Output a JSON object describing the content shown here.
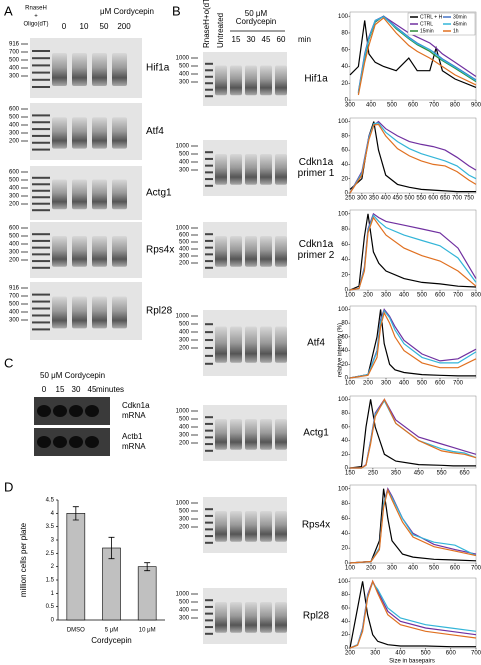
{
  "panel_labels": [
    "A",
    "B",
    "C",
    "D"
  ],
  "panel_a": {
    "header_control": [
      "RnaseH",
      "+",
      "Oligo(dT)"
    ],
    "header_title": "μM Cordycepin",
    "lanes": [
      "0",
      "10",
      "50",
      "200"
    ],
    "gels": [
      {
        "gene": "Hif1a",
        "ladder": [
          "916",
          "700",
          "500",
          "400",
          "300"
        ]
      },
      {
        "gene": "Atf4",
        "ladder": [
          "600",
          "500",
          "400",
          "300",
          "200"
        ]
      },
      {
        "gene": "Actg1",
        "ladder": [
          "600",
          "500",
          "400",
          "300",
          "200"
        ]
      },
      {
        "gene": "Rps4x",
        "ladder": [
          "600",
          "500",
          "400",
          "300",
          "200"
        ]
      },
      {
        "gene": "Rpl28",
        "ladder": [
          "916",
          "700",
          "500",
          "400",
          "300"
        ]
      }
    ]
  },
  "panel_b": {
    "header_control": "RnaseH+o(dT)",
    "header_untreated": "Untreated",
    "header_title": [
      "50 μM",
      "Cordycepin"
    ],
    "lanes": [
      "15",
      "30",
      "45",
      "60"
    ],
    "unit": "min",
    "gels": [
      {
        "gene": [
          "Hif1a"
        ],
        "ladder": [
          "1000",
          "500",
          "400",
          "300"
        ]
      },
      {
        "gene": [
          "Cdkn1a",
          "primer 1"
        ],
        "ladder": [
          "1000",
          "500",
          "400",
          "300"
        ]
      },
      {
        "gene": [
          "Cdkn1a",
          "primer 2"
        ],
        "ladder": [
          "1000",
          "600",
          "500",
          "400",
          "300",
          "200"
        ]
      },
      {
        "gene": [
          "Atf4"
        ],
        "ladder": [
          "1000",
          "500",
          "400",
          "300",
          "200"
        ]
      },
      {
        "gene": [
          "Actg1"
        ],
        "ladder": [
          "1000",
          "500",
          "400",
          "300",
          "200"
        ]
      },
      {
        "gene": [
          "Rps4x"
        ],
        "ladder": [
          "1000",
          "500",
          "300",
          "200"
        ]
      },
      {
        "gene": [
          "Rpl28"
        ],
        "ladder": [
          "1000",
          "500",
          "400",
          "300"
        ]
      }
    ],
    "y_axis_label": "relative intensity (%)",
    "x_axis_label": "Size in basepairs"
  },
  "panel_c": {
    "title": "50 μM Cordycepin",
    "lanes": [
      "0",
      "15",
      "30",
      "45"
    ],
    "lane_unit": "minutes",
    "blots": [
      [
        "Cdkn1a",
        "mRNA"
      ],
      [
        "Actb1",
        "mRNA"
      ]
    ]
  },
  "chart_data": [
    {
      "type": "line",
      "xlim": [
        300,
        900
      ],
      "xticks": [
        300,
        400,
        500,
        600,
        700,
        800,
        900
      ],
      "ylim": [
        0,
        105
      ],
      "yticks": [
        0,
        20,
        40,
        60,
        80,
        100
      ],
      "x": [
        300,
        340,
        370,
        390,
        420,
        460,
        520,
        580,
        620,
        680,
        710,
        740,
        800,
        900
      ],
      "series": [
        {
          "name": "CTRL + H",
          "color": "#000000",
          "values": [
            30,
            40,
            95,
            55,
            45,
            40,
            35,
            50,
            35,
            35,
            62,
            35,
            25,
            15
          ]
        },
        {
          "name": "CTRL",
          "color": "#7030a0",
          "values": [
            null,
            10,
            55,
            75,
            95,
            100,
            90,
            80,
            75,
            68,
            62,
            55,
            45,
            28
          ]
        },
        {
          "name": "15min",
          "color": "#2e8b3a",
          "values": [
            null,
            8,
            50,
            72,
            93,
            100,
            85,
            73,
            66,
            58,
            52,
            47,
            38,
            22
          ]
        },
        {
          "name": "30min",
          "color": "#4472c4",
          "values": [
            null,
            8,
            52,
            74,
            94,
            100,
            87,
            75,
            68,
            60,
            55,
            49,
            40,
            24
          ]
        },
        {
          "name": "45min",
          "color": "#33b5d8",
          "values": [
            null,
            9,
            53,
            73,
            95,
            99,
            86,
            74,
            67,
            60,
            54,
            48,
            39,
            23
          ]
        },
        {
          "name": "1h",
          "color": "#e07020",
          "values": [
            null,
            6,
            45,
            65,
            90,
            98,
            80,
            65,
            58,
            50,
            45,
            40,
            30,
            18
          ]
        }
      ]
    },
    {
      "type": "line",
      "xlim": [
        250,
        780
      ],
      "xticks": [
        250,
        300,
        350,
        400,
        450,
        500,
        550,
        600,
        650,
        700,
        750
      ],
      "ylim": [
        0,
        105
      ],
      "yticks": [
        0,
        20,
        40,
        60,
        80,
        100
      ],
      "x": [
        250,
        300,
        330,
        350,
        370,
        400,
        450,
        500,
        550,
        600,
        650,
        700,
        750,
        780
      ],
      "series": [
        {
          "color": "#000000",
          "values": [
            5,
            20,
            80,
            100,
            60,
            25,
            12,
            8,
            5,
            4,
            3,
            2,
            2,
            2
          ]
        },
        {
          "color": "#7030a0",
          "values": [
            0,
            30,
            80,
            95,
            100,
            90,
            80,
            72,
            68,
            65,
            60,
            50,
            38,
            32
          ]
        },
        {
          "color": "#33b5d8",
          "values": [
            0,
            28,
            78,
            97,
            98,
            85,
            72,
            62,
            55,
            50,
            45,
            38,
            25,
            20
          ]
        },
        {
          "color": "#e07020",
          "values": [
            0,
            25,
            75,
            95,
            96,
            80,
            62,
            52,
            45,
            40,
            38,
            30,
            18,
            12
          ]
        }
      ]
    },
    {
      "type": "line",
      "xlim": [
        100,
        800
      ],
      "xticks": [
        100,
        200,
        300,
        400,
        500,
        600,
        700,
        800
      ],
      "ylim": [
        0,
        105
      ],
      "yticks": [
        0,
        20,
        40,
        60,
        80,
        100
      ],
      "x": [
        100,
        150,
        180,
        200,
        230,
        260,
        300,
        400,
        500,
        600,
        700,
        800
      ],
      "series": [
        {
          "color": "#000000",
          "values": [
            0,
            5,
            70,
            100,
            50,
            35,
            25,
            15,
            10,
            8,
            5,
            4
          ]
        },
        {
          "color": "#7030a0",
          "values": [
            0,
            2,
            30,
            80,
            100,
            95,
            90,
            85,
            80,
            75,
            55,
            15
          ]
        },
        {
          "color": "#33b5d8",
          "values": [
            0,
            2,
            28,
            78,
            98,
            90,
            82,
            72,
            65,
            58,
            42,
            10
          ]
        },
        {
          "color": "#e07020",
          "values": [
            0,
            2,
            25,
            75,
            95,
            85,
            72,
            55,
            45,
            38,
            25,
            5
          ]
        }
      ]
    },
    {
      "type": "line",
      "xlim": [
        100,
        800
      ],
      "xticks": [
        100,
        200,
        300,
        400,
        500,
        600,
        700
      ],
      "ylim": [
        0,
        105
      ],
      "yticks": [
        0,
        20,
        40,
        60,
        80,
        100
      ],
      "x": [
        100,
        200,
        250,
        270,
        290,
        320,
        350,
        400,
        500,
        600,
        700,
        800
      ],
      "series": [
        {
          "color": "#000000",
          "values": [
            0,
            5,
            60,
            100,
            50,
            20,
            12,
            8,
            5,
            4,
            3,
            3
          ]
        },
        {
          "color": "#7030a0",
          "values": [
            0,
            5,
            40,
            85,
            100,
            90,
            75,
            55,
            35,
            25,
            28,
            42
          ]
        },
        {
          "color": "#33b5d8",
          "values": [
            0,
            5,
            38,
            82,
            98,
            88,
            70,
            50,
            30,
            22,
            22,
            38
          ]
        },
        {
          "color": "#e07020",
          "values": [
            0,
            4,
            30,
            75,
            95,
            80,
            60,
            40,
            22,
            15,
            15,
            28
          ]
        }
      ]
    },
    {
      "type": "line",
      "xlim": [
        150,
        700
      ],
      "xticks": [
        150,
        250,
        350,
        450,
        550,
        650
      ],
      "ylim": [
        0,
        105
      ],
      "yticks": [
        0,
        20,
        40,
        60,
        80,
        100
      ],
      "x": [
        150,
        200,
        220,
        240,
        260,
        300,
        350,
        450,
        550,
        600,
        650,
        700
      ],
      "series": [
        {
          "color": "#000000",
          "values": [
            0,
            2,
            60,
            100,
            60,
            20,
            10,
            5,
            4,
            3,
            3,
            3
          ]
        },
        {
          "color": "#7030a0",
          "values": [
            0,
            0,
            5,
            40,
            80,
            100,
            70,
            45,
            35,
            30,
            25,
            20
          ]
        },
        {
          "color": "#33b5d8",
          "values": [
            0,
            0,
            4,
            38,
            78,
            98,
            65,
            40,
            28,
            24,
            22,
            15
          ]
        },
        {
          "color": "#e07020",
          "values": [
            0,
            0,
            4,
            35,
            75,
            100,
            65,
            40,
            25,
            22,
            20,
            15
          ]
        }
      ]
    },
    {
      "type": "line",
      "xlim": [
        100,
        700
      ],
      "xticks": [
        100,
        200,
        300,
        400,
        500,
        600,
        700
      ],
      "ylim": [
        0,
        105
      ],
      "yticks": [
        0,
        20,
        40,
        60,
        80,
        100
      ],
      "x": [
        100,
        200,
        240,
        260,
        280,
        300,
        350,
        400,
        500,
        600,
        700
      ],
      "series": [
        {
          "color": "#000000",
          "values": [
            0,
            2,
            30,
            100,
            60,
            30,
            12,
            8,
            5,
            4,
            3
          ]
        },
        {
          "color": "#7030a0",
          "values": [
            0,
            2,
            20,
            80,
            100,
            90,
            60,
            40,
            25,
            18,
            12
          ]
        },
        {
          "color": "#33b5d8",
          "values": [
            0,
            2,
            20,
            80,
            98,
            88,
            60,
            38,
            28,
            24,
            10
          ]
        },
        {
          "color": "#e07020",
          "values": [
            0,
            2,
            18,
            75,
            98,
            85,
            55,
            35,
            22,
            16,
            10
          ]
        }
      ]
    },
    {
      "type": "line",
      "xlim": [
        200,
        700
      ],
      "xticks": [
        200,
        300,
        400,
        500,
        600,
        700
      ],
      "ylim": [
        0,
        105
      ],
      "yticks": [
        0,
        20,
        40,
        60,
        80,
        100
      ],
      "x": [
        200,
        230,
        250,
        270,
        290,
        310,
        350,
        400,
        500,
        600,
        700
      ],
      "series": [
        {
          "color": "#000000",
          "values": [
            0,
            60,
            100,
            50,
            20,
            10,
            5,
            3,
            3,
            2,
            2
          ]
        },
        {
          "color": "#7030a0",
          "values": [
            0,
            5,
            30,
            80,
            100,
            85,
            55,
            40,
            30,
            25,
            20
          ]
        },
        {
          "color": "#33b5d8",
          "values": [
            0,
            5,
            28,
            78,
            98,
            88,
            60,
            45,
            35,
            30,
            25
          ]
        },
        {
          "color": "#e07020",
          "values": [
            0,
            4,
            25,
            75,
            100,
            82,
            50,
            35,
            25,
            20,
            15
          ]
        }
      ]
    },
    {
      "type": "bar",
      "categories": [
        "DMSO",
        "5 μM",
        "10 μM"
      ],
      "values": [
        4.0,
        2.7,
        2.0
      ],
      "errors": [
        0.25,
        0.4,
        0.15
      ],
      "color": "#c0c0c0",
      "ylim": [
        0,
        4.5
      ],
      "yticks": [
        0,
        0.5,
        1,
        1.5,
        2,
        2.5,
        3,
        3.5,
        4,
        4.5
      ],
      "y_label": "million cells per plate",
      "x_label": "Cordycepin"
    }
  ]
}
